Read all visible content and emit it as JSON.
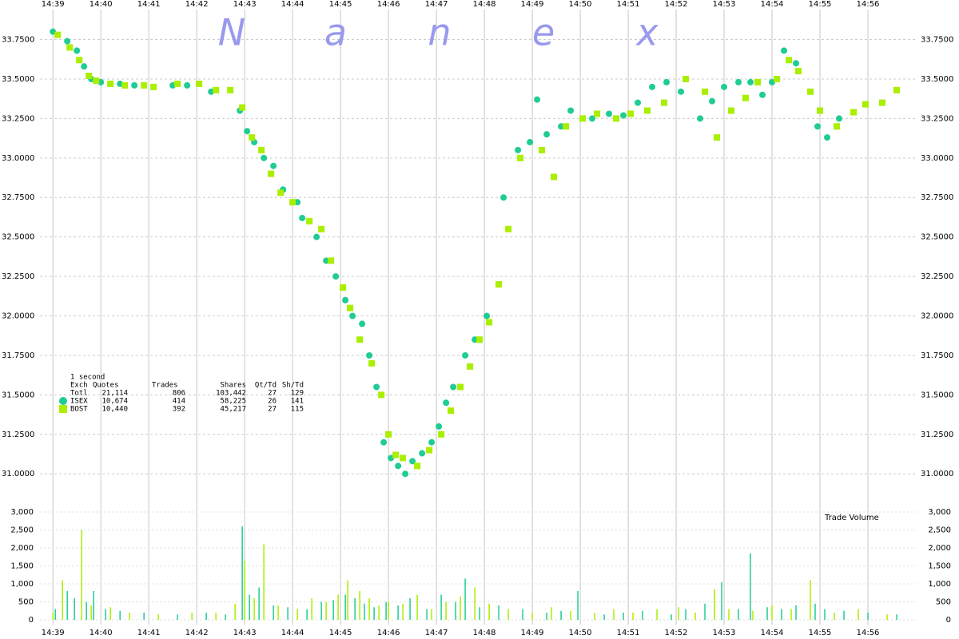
{
  "chart_data": [
    {
      "type": "scatter",
      "watermark": "Nanex",
      "xlim": [
        878.73,
        897
      ],
      "ylim": [
        30.9,
        33.95
      ],
      "xticks": [
        {
          "value": 879,
          "label": "14:39"
        },
        {
          "value": 880,
          "label": "14:40"
        },
        {
          "value": 881,
          "label": "14:41"
        },
        {
          "value": 882,
          "label": "14:42"
        },
        {
          "value": 883,
          "label": "14:43"
        },
        {
          "value": 884,
          "label": "14:44"
        },
        {
          "value": 885,
          "label": "14:45"
        },
        {
          "value": 886,
          "label": "14:46"
        },
        {
          "value": 887,
          "label": "14:47"
        },
        {
          "value": 888,
          "label": "14:48"
        },
        {
          "value": 889,
          "label": "14:49"
        },
        {
          "value": 890,
          "label": "14:50"
        },
        {
          "value": 891,
          "label": "14:51"
        },
        {
          "value": 892,
          "label": "14:52"
        },
        {
          "value": 893,
          "label": "14:53"
        },
        {
          "value": 894,
          "label": "14:54"
        },
        {
          "value": 895,
          "label": "14:55"
        },
        {
          "value": 896,
          "label": "14:56"
        }
      ],
      "yticks": [
        {
          "value": 31,
          "label": "31.0000"
        },
        {
          "value": 31.25,
          "label": "31.2500"
        },
        {
          "value": 31.5,
          "label": "31.5000"
        },
        {
          "value": 31.75,
          "label": "31.7500"
        },
        {
          "value": 32,
          "label": "32.0000"
        },
        {
          "value": 32.25,
          "label": "32.2500"
        },
        {
          "value": 32.5,
          "label": "32.5000"
        },
        {
          "value": 32.75,
          "label": "32.7500"
        },
        {
          "value": 33,
          "label": "33.0000"
        },
        {
          "value": 33.25,
          "label": "33.2500"
        },
        {
          "value": 33.5,
          "label": "33.5000"
        },
        {
          "value": 33.75,
          "label": "33.7500"
        }
      ],
      "grid": true,
      "series": [
        {
          "name": "ISEX",
          "color": "#1fcc95",
          "marker": "circle",
          "x": [
            879.0,
            879.3,
            879.5,
            879.65,
            879.8,
            880.0,
            880.4,
            880.7,
            881.5,
            881.8,
            882.3,
            882.9,
            883.05,
            883.2,
            883.4,
            883.6,
            883.8,
            884.1,
            884.2,
            884.5,
            884.7,
            884.9,
            885.1,
            885.25,
            885.45,
            885.6,
            885.75,
            885.9,
            886.05,
            886.2,
            886.35,
            886.5,
            886.7,
            886.9,
            887.05,
            887.2,
            887.35,
            887.6,
            887.8,
            888.05,
            888.4,
            888.7,
            888.95,
            889.1,
            889.3,
            889.6,
            889.8,
            890.25,
            890.6,
            890.9,
            891.2,
            891.5,
            891.8,
            892.1,
            892.5,
            892.75,
            893.0,
            893.3,
            893.55,
            893.8,
            894.0,
            894.25,
            894.5,
            894.95,
            895.15,
            895.4
          ],
          "values": [
            33.8,
            33.74,
            33.68,
            33.58,
            33.5,
            33.48,
            33.47,
            33.46,
            33.46,
            33.46,
            33.42,
            33.3,
            33.17,
            33.1,
            33.0,
            32.95,
            32.8,
            32.72,
            32.62,
            32.5,
            32.35,
            32.25,
            32.1,
            32.0,
            31.95,
            31.75,
            31.55,
            31.2,
            31.1,
            31.05,
            31.0,
            31.08,
            31.13,
            31.2,
            31.3,
            31.45,
            31.55,
            31.75,
            31.85,
            32.0,
            32.75,
            33.05,
            33.1,
            33.37,
            33.15,
            33.2,
            33.3,
            33.25,
            33.28,
            33.27,
            33.35,
            33.45,
            33.48,
            33.42,
            33.25,
            33.36,
            33.45,
            33.48,
            33.48,
            33.4,
            33.48,
            33.68,
            33.6,
            33.2,
            33.13,
            33.25
          ]
        },
        {
          "name": "BOST",
          "color": "#aaee00",
          "marker": "square",
          "x": [
            879.1,
            879.35,
            879.55,
            879.75,
            879.9,
            880.2,
            880.5,
            880.9,
            881.1,
            881.6,
            882.05,
            882.4,
            882.7,
            882.95,
            883.15,
            883.35,
            883.55,
            883.75,
            884.0,
            884.35,
            884.6,
            884.8,
            885.05,
            885.2,
            885.4,
            885.65,
            885.85,
            886.0,
            886.15,
            886.3,
            886.6,
            886.85,
            887.1,
            887.3,
            887.5,
            887.7,
            887.9,
            888.1,
            888.3,
            888.5,
            888.75,
            889.2,
            889.45,
            889.7,
            890.05,
            890.35,
            890.75,
            891.05,
            891.4,
            891.75,
            892.2,
            892.6,
            892.85,
            893.15,
            893.45,
            893.7,
            894.1,
            894.35,
            894.55,
            894.8,
            895.0,
            895.35,
            895.7,
            895.95,
            896.3,
            896.6
          ],
          "values": [
            33.78,
            33.7,
            33.62,
            33.52,
            33.49,
            33.47,
            33.46,
            33.46,
            33.45,
            33.47,
            33.47,
            33.43,
            33.43,
            33.32,
            33.13,
            33.05,
            32.9,
            32.78,
            32.72,
            32.6,
            32.55,
            32.35,
            32.18,
            32.05,
            31.85,
            31.7,
            31.5,
            31.25,
            31.12,
            31.1,
            31.05,
            31.15,
            31.25,
            31.4,
            31.55,
            31.68,
            31.85,
            31.96,
            32.2,
            32.55,
            33.0,
            33.05,
            32.88,
            33.2,
            33.25,
            33.28,
            33.25,
            33.28,
            33.3,
            33.35,
            33.5,
            33.42,
            33.13,
            33.3,
            33.38,
            33.48,
            33.5,
            33.62,
            33.55,
            33.42,
            33.3,
            33.2,
            33.29,
            33.34,
            33.35,
            33.43
          ]
        }
      ],
      "stats": {
        "interval": "1 second",
        "columns": [
          "Exch",
          "Quotes",
          "Trades",
          "Shares",
          "Qt/Td",
          "Sh/Td"
        ],
        "total": [
          "Totl",
          "21,114",
          "806",
          "103,442",
          "27",
          "129"
        ],
        "rows": [
          [
            "10,674",
            "414",
            "58,225",
            "26",
            "141"
          ],
          [
            "10,440",
            "392",
            "45,217",
            "27",
            "115"
          ]
        ]
      }
    },
    {
      "type": "bar",
      "title": "Trade Volume",
      "xlim": [
        878.73,
        897
      ],
      "ylim": [
        0,
        3000
      ],
      "yticks": [
        0,
        500,
        {
          "value": 1000,
          "label": "1,000"
        },
        {
          "value": 1500,
          "label": "1,500"
        },
        {
          "value": 2000,
          "label": "2,000"
        },
        {
          "value": 2500,
          "label": "2,500"
        },
        {
          "value": 3000,
          "label": "3,000"
        }
      ],
      "series": [
        {
          "name": "ISEX",
          "color": "#1fcc95",
          "x": [
            879.05,
            879.3,
            879.45,
            879.7,
            879.85,
            880.1,
            880.4,
            880.9,
            881.6,
            882.2,
            882.6,
            882.95,
            883.1,
            883.3,
            883.6,
            883.9,
            884.3,
            884.6,
            884.85,
            885.1,
            885.3,
            885.5,
            885.7,
            885.95,
            886.2,
            886.45,
            886.8,
            887.1,
            887.4,
            887.6,
            887.9,
            888.3,
            888.8,
            889.3,
            889.6,
            889.95,
            890.5,
            890.9,
            891.3,
            891.9,
            892.2,
            892.6,
            892.95,
            893.3,
            893.55,
            893.9,
            894.2,
            894.5,
            894.9,
            895.1,
            895.5,
            896.0,
            896.6
          ],
          "values": [
            300,
            800,
            600,
            500,
            800,
            300,
            250,
            200,
            150,
            200,
            150,
            2600,
            700,
            900,
            400,
            350,
            300,
            500,
            550,
            700,
            600,
            450,
            350,
            500,
            400,
            600,
            300,
            700,
            500,
            1150,
            350,
            400,
            300,
            200,
            250,
            800,
            150,
            200,
            250,
            150,
            300,
            450,
            1050,
            300,
            1850,
            350,
            300,
            400,
            450,
            300,
            250,
            200,
            150
          ]
        },
        {
          "name": "BOST",
          "color": "#aaee00",
          "x": [
            879.0,
            879.2,
            879.6,
            879.8,
            880.2,
            880.6,
            881.2,
            881.9,
            882.4,
            882.8,
            883.0,
            883.2,
            883.4,
            883.7,
            884.1,
            884.4,
            884.7,
            884.95,
            885.15,
            885.4,
            885.6,
            885.8,
            886.0,
            886.3,
            886.6,
            886.9,
            887.2,
            887.5,
            887.8,
            888.1,
            888.5,
            889.0,
            889.4,
            889.8,
            890.3,
            890.7,
            891.1,
            891.6,
            892.05,
            892.4,
            892.8,
            893.1,
            893.6,
            894.0,
            894.4,
            894.8,
            895.3,
            895.8,
            896.4
          ],
          "values": [
            200,
            1100,
            2500,
            400,
            350,
            200,
            150,
            200,
            200,
            450,
            1650,
            600,
            2100,
            400,
            300,
            600,
            500,
            700,
            1100,
            800,
            600,
            400,
            500,
            450,
            700,
            300,
            500,
            650,
            900,
            450,
            300,
            200,
            350,
            250,
            200,
            300,
            200,
            300,
            350,
            200,
            850,
            300,
            250,
            400,
            300,
            1100,
            200,
            300,
            150
          ]
        }
      ]
    }
  ]
}
